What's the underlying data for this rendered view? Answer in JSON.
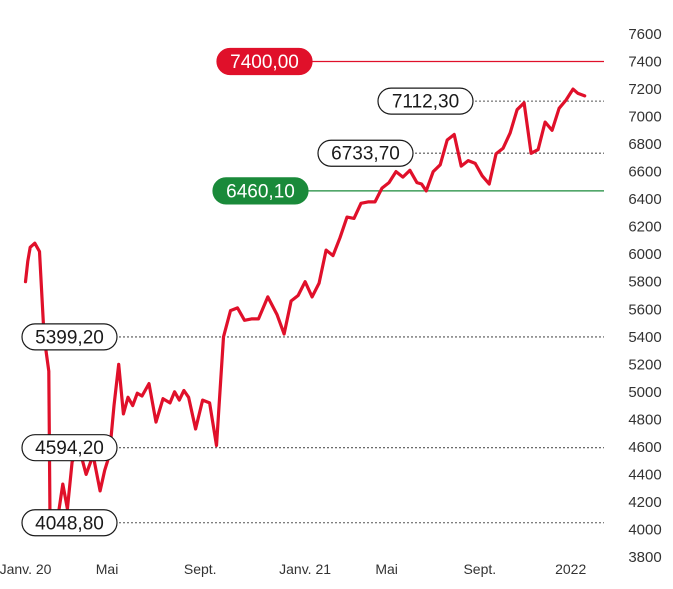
{
  "chart_data": {
    "type": "line",
    "title": "",
    "xlabel": "",
    "ylabel": "",
    "ylim": [
      3800,
      7600
    ],
    "yticks": [
      3800,
      4000,
      4200,
      4400,
      4600,
      4800,
      5000,
      5200,
      5400,
      5600,
      5800,
      6000,
      6200,
      6400,
      6600,
      6800,
      7000,
      7200,
      7400,
      7600
    ],
    "x_ticks": [
      {
        "label": "Janv. 20",
        "x": 0
      },
      {
        "label": "Mai",
        "x": 3.5
      },
      {
        "label": "Sept.",
        "x": 7.5
      },
      {
        "label": "Janv. 21",
        "x": 12
      },
      {
        "label": "Mai",
        "x": 15.5
      },
      {
        "label": "Sept.",
        "x": 19.5
      },
      {
        "label": "2022",
        "x": 23.4
      }
    ],
    "xlim": [
      -0.15,
      24.4
    ],
    "line_color": "#e0102a",
    "grid": false,
    "series": [
      {
        "x": [
          0.0,
          0.1,
          0.2,
          0.4,
          0.6,
          0.8,
          1.0,
          1.05,
          1.3,
          1.4,
          1.6,
          1.8,
          2.0,
          2.3,
          2.6,
          2.9,
          3.2,
          3.4,
          3.6,
          3.8,
          4.0,
          4.2,
          4.4,
          4.6,
          4.8,
          5.0,
          5.3,
          5.6,
          5.9,
          6.2,
          6.4,
          6.6,
          6.8,
          7.0,
          7.3,
          7.6,
          7.9,
          8.2,
          8.5,
          8.8,
          9.1,
          9.4,
          9.7,
          10.0,
          10.4,
          10.8,
          11.1,
          11.4,
          11.7,
          12.0,
          12.3,
          12.6,
          12.9,
          13.2,
          13.5,
          13.8,
          14.1,
          14.4,
          14.7,
          15.0,
          15.3,
          15.6,
          15.9,
          16.2,
          16.5,
          16.8,
          17.0,
          17.2,
          17.5,
          17.8,
          18.1,
          18.4,
          18.7,
          19.0,
          19.3,
          19.6,
          19.9,
          20.2,
          20.5,
          20.8,
          21.1,
          21.4,
          21.7,
          22.0,
          22.3,
          22.6,
          22.9,
          23.2,
          23.5,
          23.7,
          24.0
        ],
        "values": [
          5800,
          5950,
          6050,
          6080,
          6020,
          5399,
          5150,
          4080,
          4080,
          4100,
          4330,
          4150,
          4490,
          4594,
          4400,
          4540,
          4280,
          4430,
          4540,
          4900,
          5200,
          4840,
          4960,
          4900,
          4990,
          4970,
          5060,
          4780,
          4950,
          4920,
          5000,
          4940,
          5010,
          4960,
          4730,
          4940,
          4920,
          4610,
          5399,
          5590,
          5610,
          5520,
          5530,
          5530,
          5690,
          5560,
          5420,
          5660,
          5700,
          5800,
          5690,
          5790,
          6030,
          5990,
          6120,
          6270,
          6260,
          6370,
          6380,
          6380,
          6480,
          6520,
          6600,
          6560,
          6610,
          6520,
          6510,
          6460,
          6600,
          6650,
          6830,
          6870,
          6640,
          6680,
          6660,
          6570,
          6510,
          6730,
          6770,
          6880,
          7050,
          7100,
          6733,
          6760,
          6960,
          6900,
          7060,
          7120,
          7200,
          7170,
          7150
        ]
      }
    ],
    "annotations": [
      {
        "label": "7400,00",
        "value": 7400,
        "style": "filled",
        "fill": "#e0102a",
        "text_color": "#ffffff",
        "line": "solid",
        "line_color": "#e0102a"
      },
      {
        "label": "7112,30",
        "value": 7112.3,
        "style": "outline",
        "fill": "#ffffff",
        "text_color": "#1a1a1a",
        "line": "dotted",
        "line_color": "#555555"
      },
      {
        "label": "6733,70",
        "value": 6733.7,
        "style": "outline",
        "fill": "#ffffff",
        "text_color": "#1a1a1a",
        "line": "dotted",
        "line_color": "#555555"
      },
      {
        "label": "6460,10",
        "value": 6460.1,
        "style": "filled",
        "fill": "#1a8a3a",
        "text_color": "#ffffff",
        "line": "solid",
        "line_color": "#1a8a3a"
      },
      {
        "label": "5399,20",
        "value": 5399.2,
        "style": "outline",
        "fill": "#ffffff",
        "text_color": "#1a1a1a",
        "line": "dotted",
        "line_color": "#555555"
      },
      {
        "label": "4594,20",
        "value": 4594.2,
        "style": "outline",
        "fill": "#ffffff",
        "text_color": "#1a1a1a",
        "line": "dotted",
        "line_color": "#555555"
      },
      {
        "label": "4048,80",
        "value": 4048.8,
        "style": "outline",
        "fill": "#ffffff",
        "text_color": "#1a1a1a",
        "line": "dotted",
        "line_color": "#555555"
      }
    ]
  }
}
